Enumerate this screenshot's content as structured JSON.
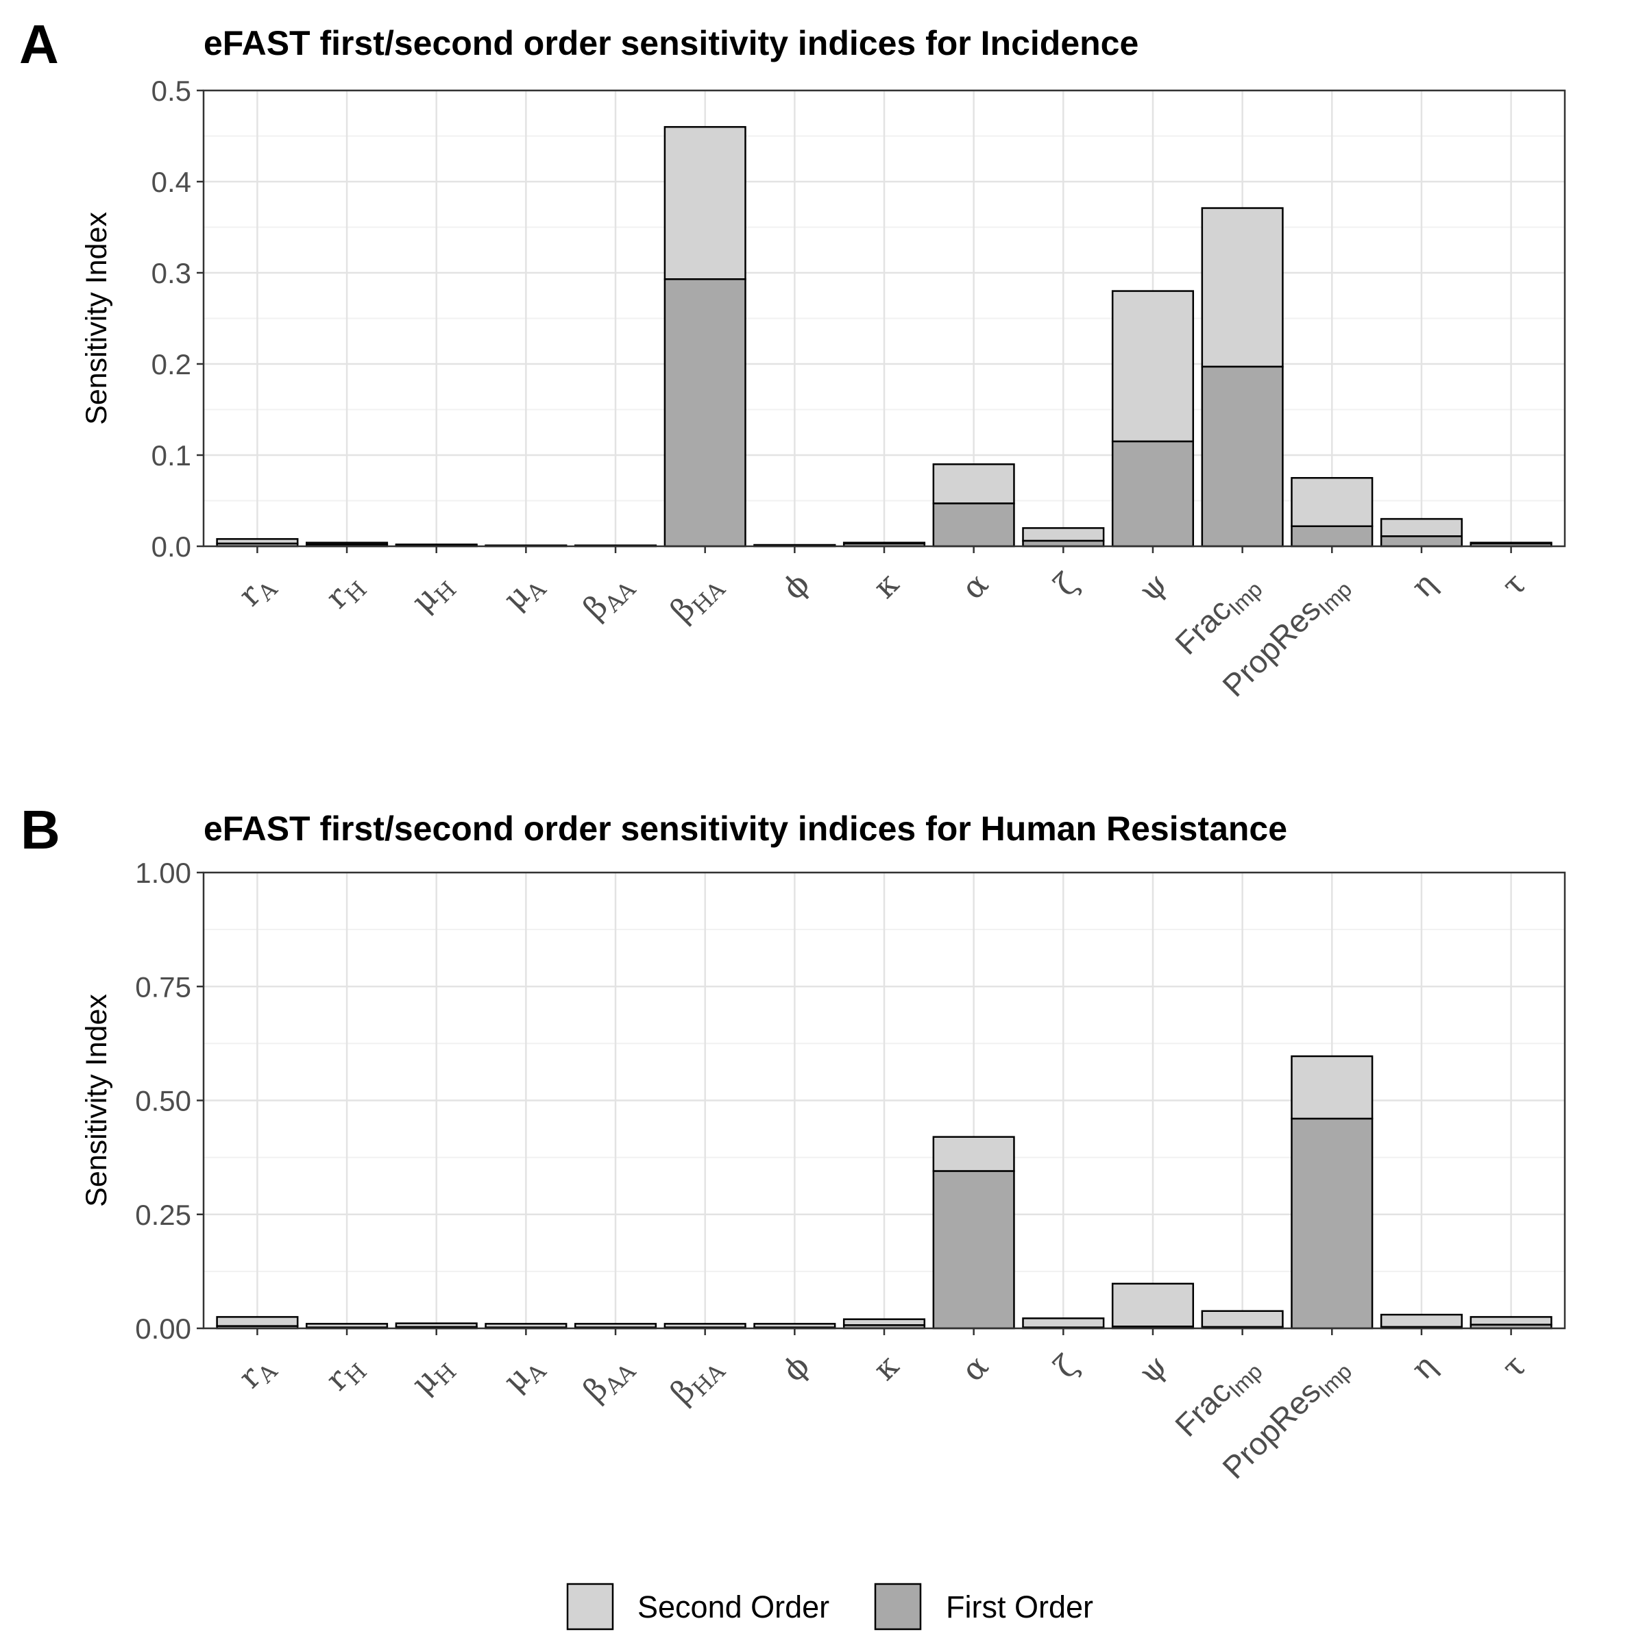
{
  "colors": {
    "second_order": "#d3d3d3",
    "first_order": "#a9a9a9",
    "bar_outline": "#000000",
    "grid_major": "#e3e3e3",
    "grid_minor": "#f1f1f1",
    "panel_border": "#333333"
  },
  "categories": [
    {
      "base": "r",
      "sub": "A",
      "style": "serif"
    },
    {
      "base": "r",
      "sub": "H",
      "style": "serif"
    },
    {
      "base": "μ",
      "sub": "H",
      "style": "serif"
    },
    {
      "base": "μ",
      "sub": "A",
      "style": "serif"
    },
    {
      "base": "β",
      "sub": "AA",
      "style": "serif"
    },
    {
      "base": "β",
      "sub": "HA",
      "style": "serif"
    },
    {
      "base": "ϕ",
      "sub": "",
      "style": "serif"
    },
    {
      "base": "κ",
      "sub": "",
      "style": "serif"
    },
    {
      "base": "α",
      "sub": "",
      "style": "serif"
    },
    {
      "base": "ζ",
      "sub": "",
      "style": "serif"
    },
    {
      "base": "ψ",
      "sub": "",
      "style": "serif"
    },
    {
      "base": "Frac",
      "sub": "Imp",
      "style": "sans"
    },
    {
      "base": "PropRes",
      "sub": "Imp",
      "style": "sans"
    },
    {
      "base": "η",
      "sub": "",
      "style": "serif"
    },
    {
      "base": "τ",
      "sub": "",
      "style": "serif"
    }
  ],
  "legend": [
    {
      "key": "second_order",
      "label": "Second Order"
    },
    {
      "key": "first_order",
      "label": "First Order"
    }
  ],
  "chart_data": [
    {
      "panel_label": "A",
      "type": "bar",
      "stacked": true,
      "title": "eFAST first/second order sensitivity indices for Incidence",
      "xlabel": "",
      "ylabel": "Sensitivity Index",
      "ylim": [
        0,
        0.5
      ],
      "yticks": [
        "0.0",
        "0.1",
        "0.2",
        "0.3",
        "0.4",
        "0.5"
      ],
      "ytick_values": [
        0,
        0.1,
        0.2,
        0.3,
        0.4,
        0.5
      ],
      "grid": true,
      "legend_position": "bottom",
      "categories": [
        "rA",
        "rH",
        "μH",
        "μA",
        "βAA",
        "βHA",
        "ϕ",
        "κ",
        "α",
        "ζ",
        "ψ",
        "FracImp",
        "PropResImp",
        "η",
        "τ"
      ],
      "series": [
        {
          "name": "First Order",
          "values": [
            0.003,
            0.002,
            0.001,
            0.0005,
            0.0005,
            0.293,
            0.001,
            0.003,
            0.047,
            0.006,
            0.115,
            0.197,
            0.022,
            0.011,
            0.003
          ]
        },
        {
          "name": "Second Order",
          "values": [
            0.005,
            0.002,
            0.001,
            0.0005,
            0.0005,
            0.167,
            0.0005,
            0.001,
            0.043,
            0.014,
            0.165,
            0.174,
            0.053,
            0.019,
            0.001
          ]
        }
      ]
    },
    {
      "panel_label": "B",
      "type": "bar",
      "stacked": true,
      "title": "eFAST first/second order sensitivity indices for Human Resistance",
      "xlabel": "",
      "ylabel": "Sensitivity Index",
      "ylim": [
        0,
        1.0
      ],
      "yticks": [
        "0.00",
        "0.25",
        "0.50",
        "0.75",
        "1.00"
      ],
      "ytick_values": [
        0,
        0.25,
        0.5,
        0.75,
        1.0
      ],
      "grid": true,
      "legend_position": "bottom",
      "categories": [
        "rA",
        "rH",
        "μH",
        "μA",
        "βAA",
        "βHA",
        "ϕ",
        "κ",
        "α",
        "ζ",
        "ψ",
        "FracImp",
        "PropResImp",
        "η",
        "τ"
      ],
      "series": [
        {
          "name": "First Order",
          "values": [
            0.005,
            0.002,
            0.003,
            0.002,
            0.002,
            0.002,
            0.002,
            0.007,
            0.345,
            0.002,
            0.004,
            0.003,
            0.46,
            0.003,
            0.008
          ]
        },
        {
          "name": "Second Order",
          "values": [
            0.02,
            0.008,
            0.008,
            0.008,
            0.008,
            0.008,
            0.008,
            0.013,
            0.075,
            0.02,
            0.094,
            0.035,
            0.137,
            0.027,
            0.017
          ]
        }
      ]
    }
  ]
}
